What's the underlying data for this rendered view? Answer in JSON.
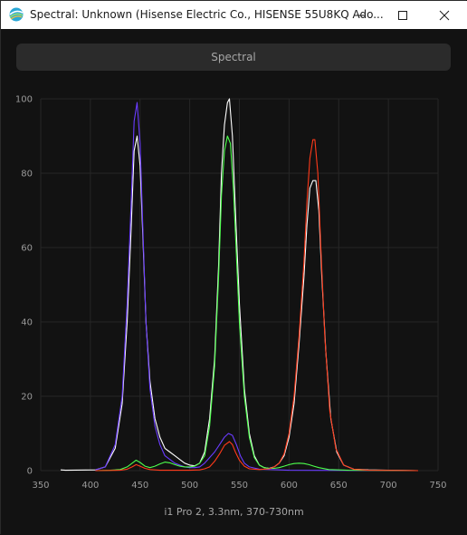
{
  "window": {
    "title": "Spectral: Unknown (Hisense Electric Co., HISENSE 55U8KQ Ado...",
    "icons": {
      "app": "spectral-app-icon",
      "minimize": "minimize-icon",
      "maximize": "maximize-icon",
      "close": "close-icon"
    }
  },
  "header": {
    "label": "Spectral"
  },
  "footer": {
    "label": "i1 Pro 2, 3.3nm, 370-730nm"
  },
  "colors": {
    "white": "#ffffff",
    "blue": "#6a3cff",
    "green": "#4dff4d",
    "red": "#ff3a1a"
  },
  "chart_data": {
    "type": "line",
    "xlim": [
      350,
      750
    ],
    "ylim": [
      0,
      100
    ],
    "xticks": [
      350,
      400,
      450,
      500,
      550,
      600,
      650,
      700,
      750
    ],
    "yticks": [
      0,
      20,
      40,
      60,
      80,
      100
    ],
    "grid": true,
    "series": [
      {
        "color": "#ffffff",
        "points": [
          [
            370,
            0.2
          ],
          [
            375,
            0.1
          ],
          [
            405,
            0.2
          ],
          [
            415,
            1
          ],
          [
            425,
            6
          ],
          [
            432,
            18
          ],
          [
            437,
            40
          ],
          [
            441,
            65
          ],
          [
            444,
            86
          ],
          [
            447,
            90
          ],
          [
            450,
            82
          ],
          [
            453,
            62
          ],
          [
            456,
            40
          ],
          [
            460,
            24
          ],
          [
            465,
            14
          ],
          [
            470,
            9
          ],
          [
            475,
            6
          ],
          [
            480,
            5
          ],
          [
            485,
            4
          ],
          [
            490,
            3
          ],
          [
            495,
            2
          ],
          [
            500,
            1.5
          ],
          [
            505,
            1.3
          ],
          [
            510,
            2
          ],
          [
            515,
            5
          ],
          [
            520,
            14
          ],
          [
            525,
            30
          ],
          [
            529,
            55
          ],
          [
            532,
            80
          ],
          [
            535,
            93
          ],
          [
            538,
            99
          ],
          [
            540,
            100
          ],
          [
            543,
            90
          ],
          [
            546,
            70
          ],
          [
            550,
            45
          ],
          [
            555,
            22
          ],
          [
            560,
            10
          ],
          [
            565,
            4
          ],
          [
            570,
            1.5
          ],
          [
            575,
            0.8
          ],
          [
            580,
            0.6
          ],
          [
            585,
            1
          ],
          [
            590,
            2
          ],
          [
            595,
            4
          ],
          [
            600,
            9
          ],
          [
            605,
            18
          ],
          [
            610,
            34
          ],
          [
            615,
            52
          ],
          [
            618,
            66
          ],
          [
            621,
            76
          ],
          [
            624,
            78
          ],
          [
            627,
            78
          ],
          [
            630,
            70
          ],
          [
            633,
            52
          ],
          [
            637,
            32
          ],
          [
            642,
            14
          ],
          [
            648,
            5
          ],
          [
            655,
            1.5
          ],
          [
            665,
            0.4
          ],
          [
            680,
            0.2
          ],
          [
            700,
            0.1
          ],
          [
            730,
            0
          ]
        ]
      },
      {
        "color": "#6a3cff",
        "points": [
          [
            405,
            0.2
          ],
          [
            415,
            1
          ],
          [
            425,
            7
          ],
          [
            432,
            20
          ],
          [
            437,
            45
          ],
          [
            441,
            72
          ],
          [
            444,
            94
          ],
          [
            447,
            99
          ],
          [
            450,
            88
          ],
          [
            453,
            64
          ],
          [
            456,
            40
          ],
          [
            460,
            22
          ],
          [
            465,
            12
          ],
          [
            470,
            7
          ],
          [
            475,
            4
          ],
          [
            480,
            3
          ],
          [
            485,
            2
          ],
          [
            490,
            1.5
          ],
          [
            495,
            1
          ],
          [
            500,
            0.8
          ],
          [
            505,
            0.8
          ],
          [
            510,
            1
          ],
          [
            515,
            2
          ],
          [
            520,
            3.5
          ],
          [
            525,
            5
          ],
          [
            530,
            7
          ],
          [
            535,
            9
          ],
          [
            539,
            10
          ],
          [
            543,
            9.5
          ],
          [
            547,
            7
          ],
          [
            551,
            4
          ],
          [
            555,
            2
          ],
          [
            560,
            1
          ],
          [
            570,
            0.4
          ],
          [
            600,
            0.1
          ],
          [
            730,
            0
          ]
        ]
      },
      {
        "color": "#4dff4d",
        "points": [
          [
            405,
            0
          ],
          [
            420,
            0.1
          ],
          [
            430,
            0.3
          ],
          [
            437,
            1
          ],
          [
            442,
            2
          ],
          [
            446,
            2.8
          ],
          [
            450,
            2.2
          ],
          [
            455,
            1.2
          ],
          [
            460,
            0.8
          ],
          [
            465,
            1.2
          ],
          [
            470,
            1.8
          ],
          [
            475,
            2.3
          ],
          [
            480,
            2.1
          ],
          [
            485,
            1.6
          ],
          [
            490,
            1.2
          ],
          [
            495,
            1
          ],
          [
            500,
            1
          ],
          [
            505,
            1.2
          ],
          [
            510,
            2
          ],
          [
            515,
            4
          ],
          [
            520,
            12
          ],
          [
            525,
            28
          ],
          [
            529,
            52
          ],
          [
            532,
            74
          ],
          [
            535,
            86
          ],
          [
            538,
            90
          ],
          [
            541,
            88
          ],
          [
            544,
            76
          ],
          [
            547,
            58
          ],
          [
            550,
            40
          ],
          [
            555,
            20
          ],
          [
            560,
            9
          ],
          [
            565,
            3.5
          ],
          [
            570,
            1.5
          ],
          [
            575,
            0.8
          ],
          [
            580,
            0.6
          ],
          [
            585,
            0.6
          ],
          [
            590,
            0.8
          ],
          [
            595,
            1.2
          ],
          [
            600,
            1.6
          ],
          [
            605,
            1.9
          ],
          [
            610,
            2
          ],
          [
            615,
            1.9
          ],
          [
            620,
            1.6
          ],
          [
            625,
            1.2
          ],
          [
            630,
            0.8
          ],
          [
            640,
            0.3
          ],
          [
            660,
            0.1
          ],
          [
            730,
            0
          ]
        ]
      },
      {
        "color": "#ff3a1a",
        "points": [
          [
            405,
            0
          ],
          [
            430,
            0.1
          ],
          [
            437,
            0.4
          ],
          [
            442,
            1
          ],
          [
            446,
            1.6
          ],
          [
            450,
            1.2
          ],
          [
            455,
            0.6
          ],
          [
            460,
            0.3
          ],
          [
            470,
            0.1
          ],
          [
            500,
            0.1
          ],
          [
            510,
            0.2
          ],
          [
            515,
            0.5
          ],
          [
            520,
            1
          ],
          [
            525,
            2.5
          ],
          [
            530,
            4.5
          ],
          [
            535,
            6.8
          ],
          [
            540,
            7.8
          ],
          [
            543,
            7
          ],
          [
            546,
            5
          ],
          [
            550,
            2.8
          ],
          [
            555,
            1.2
          ],
          [
            560,
            0.5
          ],
          [
            570,
            0.3
          ],
          [
            580,
            0.5
          ],
          [
            585,
            1
          ],
          [
            590,
            2
          ],
          [
            595,
            4.5
          ],
          [
            600,
            10
          ],
          [
            605,
            20
          ],
          [
            610,
            36
          ],
          [
            615,
            56
          ],
          [
            618,
            72
          ],
          [
            621,
            84
          ],
          [
            624,
            89
          ],
          [
            626,
            89
          ],
          [
            629,
            80
          ],
          [
            632,
            60
          ],
          [
            636,
            36
          ],
          [
            641,
            16
          ],
          [
            647,
            6
          ],
          [
            655,
            1.5
          ],
          [
            665,
            0.4
          ],
          [
            680,
            0.1
          ],
          [
            730,
            0
          ]
        ]
      }
    ]
  }
}
